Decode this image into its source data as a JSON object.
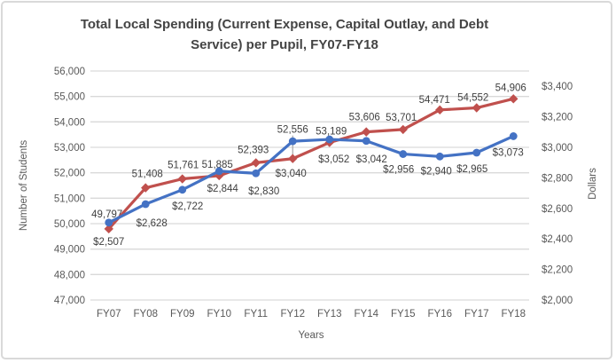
{
  "window": {
    "background": "#ffffff",
    "border_color": "#D9D9D9"
  },
  "chart_data": {
    "type": "line",
    "title": "Total Local Spending (Current Expense, Capital Outlay, and Debt Service) per Pupil, FY07-FY18",
    "xlabel": "Years",
    "ylabel_left": "Number of Students",
    "ylabel_right": "Dollars",
    "categories": [
      "FY07",
      "FY08",
      "FY09",
      "FY10",
      "FY11",
      "FY12",
      "FY13",
      "FY14",
      "FY15",
      "FY16",
      "FY17",
      "FY18"
    ],
    "series": [
      {
        "name": "Number of Students",
        "axis": "left",
        "color": "#C0504D",
        "marker": "diamond",
        "values": [
          49797,
          51408,
          51761,
          51885,
          52393,
          52556,
          53189,
          53606,
          53701,
          54471,
          54552,
          54906
        ],
        "labels": [
          "49,797",
          "51,408",
          "51,761",
          "51,885",
          "52,393",
          "52,556",
          "53,189",
          "53,606",
          "53,701",
          "54,471",
          "54,552",
          "54,906"
        ]
      },
      {
        "name": "Dollars",
        "axis": "right",
        "color": "#4472C4",
        "marker": "circle",
        "values": [
          2507,
          2628,
          2722,
          2844,
          2830,
          3040,
          3052,
          3042,
          2956,
          2940,
          2965,
          3073
        ],
        "labels": [
          "$2,507",
          "$2,628",
          "$2,722",
          "$2,844",
          "$2,830",
          "$3,040",
          "$3,052",
          "$3,042",
          "$2,956",
          "$2,940",
          "$2,965",
          "$3,073"
        ]
      }
    ],
    "left_axis": {
      "min": 47000,
      "max": 56000,
      "tick_values": [
        47000,
        48000,
        49000,
        50000,
        51000,
        52000,
        53000,
        54000,
        55000,
        56000
      ],
      "tick_labels": [
        "47,000",
        "48,000",
        "49,000",
        "50,000",
        "51,000",
        "52,000",
        "53,000",
        "54,000",
        "55,000",
        "56,000"
      ]
    },
    "right_axis": {
      "min": 2000,
      "plot_max": 3500,
      "tick_values": [
        2000,
        2200,
        2400,
        2600,
        2800,
        3000,
        3200,
        3400
      ],
      "tick_labels": [
        "$2,000",
        "$2,200",
        "$2,400",
        "$2,600",
        "$2,800",
        "$3,000",
        "$3,200",
        "$3,400"
      ]
    },
    "grid": true,
    "legend": "none",
    "colors": {
      "grid": "#D9D9D9",
      "tick_text": "#595959",
      "data_label_text": "#404040",
      "title_text": "#444444",
      "axis_title_text": "#595959",
      "leader_line": "#A6A6A6"
    }
  }
}
